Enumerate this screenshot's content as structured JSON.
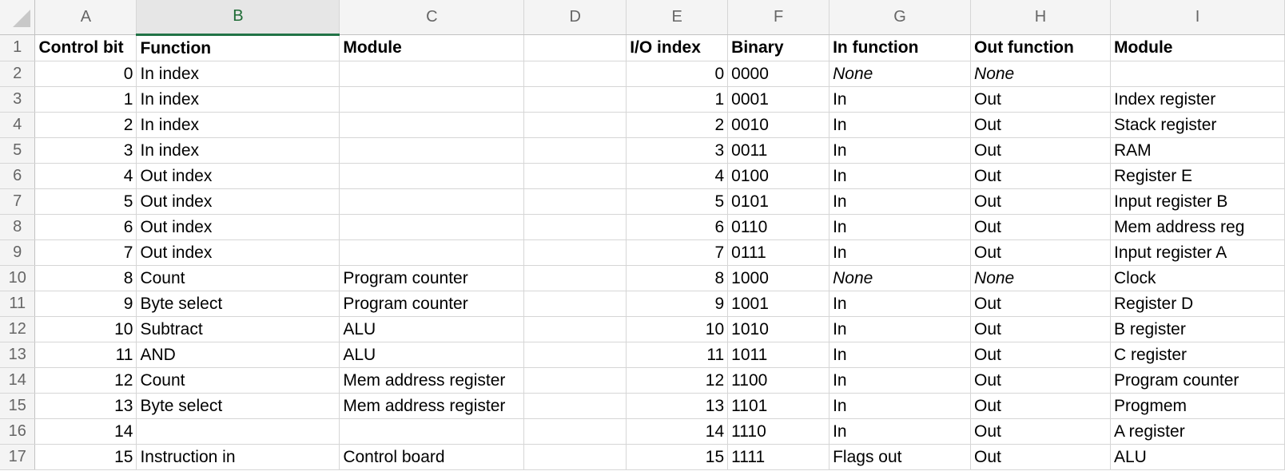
{
  "columns": [
    "A",
    "B",
    "C",
    "D",
    "E",
    "F",
    "G",
    "H",
    "I"
  ],
  "active_column": "B",
  "rows": [
    {
      "n": "1",
      "a": "Control bit",
      "b": "Function",
      "c": "Module",
      "d": "",
      "e": "I/O index",
      "f": "Binary",
      "g": "In function",
      "h": "Out function",
      "i": "Module"
    },
    {
      "n": "2",
      "a": "0",
      "b": "In index",
      "c": "",
      "d": "",
      "e": "0",
      "f": "0000",
      "g": "None",
      "h": "None",
      "i": ""
    },
    {
      "n": "3",
      "a": "1",
      "b": "In index",
      "c": "",
      "d": "",
      "e": "1",
      "f": "0001",
      "g": "In",
      "h": "Out",
      "i": "Index register"
    },
    {
      "n": "4",
      "a": "2",
      "b": "In index",
      "c": "",
      "d": "",
      "e": "2",
      "f": "0010",
      "g": "In",
      "h": "Out",
      "i": "Stack register"
    },
    {
      "n": "5",
      "a": "3",
      "b": "In index",
      "c": "",
      "d": "",
      "e": "3",
      "f": "0011",
      "g": "In",
      "h": "Out",
      "i": "RAM"
    },
    {
      "n": "6",
      "a": "4",
      "b": "Out index",
      "c": "",
      "d": "",
      "e": "4",
      "f": "0100",
      "g": "In",
      "h": "Out",
      "i": "Register E"
    },
    {
      "n": "7",
      "a": "5",
      "b": "Out index",
      "c": "",
      "d": "",
      "e": "5",
      "f": "0101",
      "g": "In",
      "h": "Out",
      "i": "Input register B"
    },
    {
      "n": "8",
      "a": "6",
      "b": "Out index",
      "c": "",
      "d": "",
      "e": "6",
      "f": "0110",
      "g": "In",
      "h": "Out",
      "i": "Mem address reg"
    },
    {
      "n": "9",
      "a": "7",
      "b": "Out index",
      "c": "",
      "d": "",
      "e": "7",
      "f": "0111",
      "g": "In",
      "h": "Out",
      "i": "Input register A"
    },
    {
      "n": "10",
      "a": "8",
      "b": "Count",
      "c": "Program counter",
      "d": "",
      "e": "8",
      "f": "1000",
      "g": "None",
      "h": "None",
      "i": "Clock"
    },
    {
      "n": "11",
      "a": "9",
      "b": "Byte select",
      "c": "Program counter",
      "d": "",
      "e": "9",
      "f": "1001",
      "g": "In",
      "h": "Out",
      "i": "Register D"
    },
    {
      "n": "12",
      "a": "10",
      "b": "Subtract",
      "c": "ALU",
      "d": "",
      "e": "10",
      "f": "1010",
      "g": "In",
      "h": "Out",
      "i": "B register"
    },
    {
      "n": "13",
      "a": "11",
      "b": "AND",
      "c": "ALU",
      "d": "",
      "e": "11",
      "f": "1011",
      "g": "In",
      "h": "Out",
      "i": "C register"
    },
    {
      "n": "14",
      "a": "12",
      "b": "Count",
      "c": "Mem address register",
      "d": "",
      "e": "12",
      "f": "1100",
      "g": "In",
      "h": "Out",
      "i": "Program counter"
    },
    {
      "n": "15",
      "a": "13",
      "b": "Byte select",
      "c": "Mem address register",
      "d": "",
      "e": "13",
      "f": "1101",
      "g": "In",
      "h": "Out",
      "i": "Progmem"
    },
    {
      "n": "16",
      "a": "14",
      "b": "",
      "c": "",
      "d": "",
      "e": "14",
      "f": "1110",
      "g": "In",
      "h": "Out",
      "i": "A register"
    },
    {
      "n": "17",
      "a": "15",
      "b": "Instruction in",
      "c": "Control board",
      "d": "",
      "e": "15",
      "f": "1111",
      "g": "Flags out",
      "h": "Out",
      "i": "ALU"
    }
  ]
}
